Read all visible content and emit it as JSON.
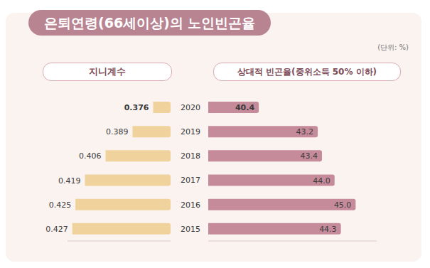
{
  "title": "은퇴연령(66세이상)의 노인빈곤율",
  "note": "(단위: %)",
  "chart_data": [
    {
      "type": "bar",
      "orientation": "horizontal",
      "title": "지니계수",
      "categories": [
        "2020",
        "2019",
        "2018",
        "2017",
        "2016",
        "2015"
      ],
      "values": [
        0.376,
        0.389,
        0.406,
        0.419,
        0.425,
        0.427
      ],
      "color": "#f0d29c",
      "xlim": [
        0.365,
        0.43
      ],
      "data_labels": true,
      "tick_labels": "y"
    },
    {
      "type": "bar",
      "orientation": "horizontal",
      "title": "상대적 빈곤율(중위소득 50% 이하)",
      "categories": [
        "2020",
        "2019",
        "2018",
        "2017",
        "2016",
        "2015"
      ],
      "values": [
        40.4,
        43.2,
        43.4,
        44.0,
        45.0,
        44.3
      ],
      "value_labels": [
        "40.4",
        "43.2",
        "43.4",
        "44.0",
        "45.0",
        "44.3"
      ],
      "color": "#c68b9a",
      "xlim": [
        38,
        46
      ],
      "data_labels": true,
      "tick_labels": false
    }
  ]
}
